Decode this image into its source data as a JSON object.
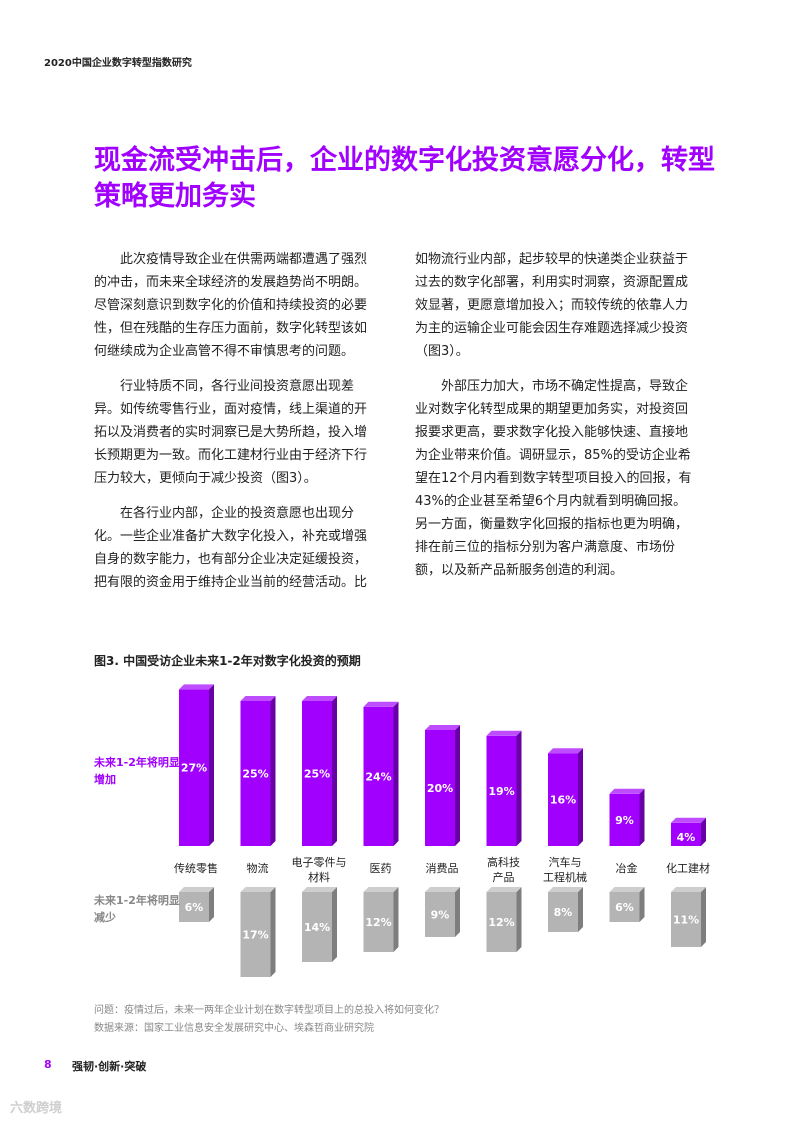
{
  "header": {
    "report_title": "2020中国企业数字转型指数研究"
  },
  "headline": "现金流受冲击后，企业的数字化投资意愿分化，转型策略更加务实",
  "body": {
    "left_paragraphs": [
      "此次疫情导致企业在供需两端都遭遇了强烈的冲击，而未来全球经济的发展趋势尚不明朗。尽管深刻意识到数字化的价值和持续投资的必要性，但在残酷的生存压力面前，数字化转型该如何继续成为企业高管不得不审慎思考的问题。",
      "行业特质不同，各行业间投资意愿出现差异。如传统零售行业，面对疫情，线上渠道的开拓以及消费者的实时洞察已是大势所趋，投入增长预期更为一致。而化工建材行业由于经济下行压力较大，更倾向于减少投资（图3）。",
      "在各行业内部，企业的投资意愿也出现分化。一些企业准备扩大数字化投入，补充或增强自身的数字能力，也有部分企业决定延缓投资，把有限的资金用于维持企业当前的经营活动。比"
    ],
    "right_paragraphs": [
      "如物流行业内部，起步较早的快递类企业获益于过去的数字化部署，利用实时洞察，资源配置成效显著，更愿意增加投入；而较传统的依靠人力为主的运输企业可能会因生存难题选择减少投资（图3）。",
      "外部压力加大，市场不确定性提高，导致企业对数字化转型成果的期望更加务实，对投资回报要求更高，要求数字化投入能够快速、直接地为企业带来价值。调研显示，85%的受访企业希望在12个月内看到数字转型项目投入的回报，有43%的企业甚至希望6个月内就看到明确回报。另一方面，衡量数字化回报的指标也更为明确，排在前三位的指标分别为客户满意度、市场份额，以及新产品新服务创造的利润。"
    ]
  },
  "figure": {
    "title": "图3. 中国受访企业未来1-2年对数字化投资的预期",
    "row_label_increase": "未来1-2年将明显增加",
    "row_label_decrease": "未来1-2年将明显减少",
    "question": "问题：疫情过后，未来一两年企业计划在数字转型项目上的总投入将如何变化？",
    "source": "数据来源：国家工业信息安全发展研究中心、埃森哲商业研究院"
  },
  "chart_data": {
    "type": "bar",
    "title": "图3. 中国受访企业未来1-2年对数字化投资的预期",
    "categories": [
      "传统零售",
      "物流",
      "电子零件与材料",
      "医药",
      "消费品",
      "高科技产品",
      "汽车与工程机械",
      "冶金",
      "化工建材"
    ],
    "category_lines": [
      [
        "传统零售"
      ],
      [
        "物流"
      ],
      [
        "电子零件与",
        "材料"
      ],
      [
        "医药"
      ],
      [
        "消费品"
      ],
      [
        "高科技",
        "产品"
      ],
      [
        "汽车与",
        "工程机械"
      ],
      [
        "冶金"
      ],
      [
        "化工建材"
      ]
    ],
    "series": [
      {
        "name": "未来1-2年将明显增加",
        "values": [
          27,
          25,
          25,
          24,
          20,
          19,
          16,
          9,
          4
        ],
        "color": "#a100ff"
      },
      {
        "name": "未来1-2年将明显减少",
        "values": [
          6,
          17,
          14,
          12,
          9,
          12,
          8,
          6,
          11
        ],
        "color": "#b4b4b4"
      }
    ],
    "unit": "%"
  },
  "footer": {
    "page_number": "8",
    "slogan": "强韧·创新·突破"
  },
  "watermark": "六数跨境"
}
